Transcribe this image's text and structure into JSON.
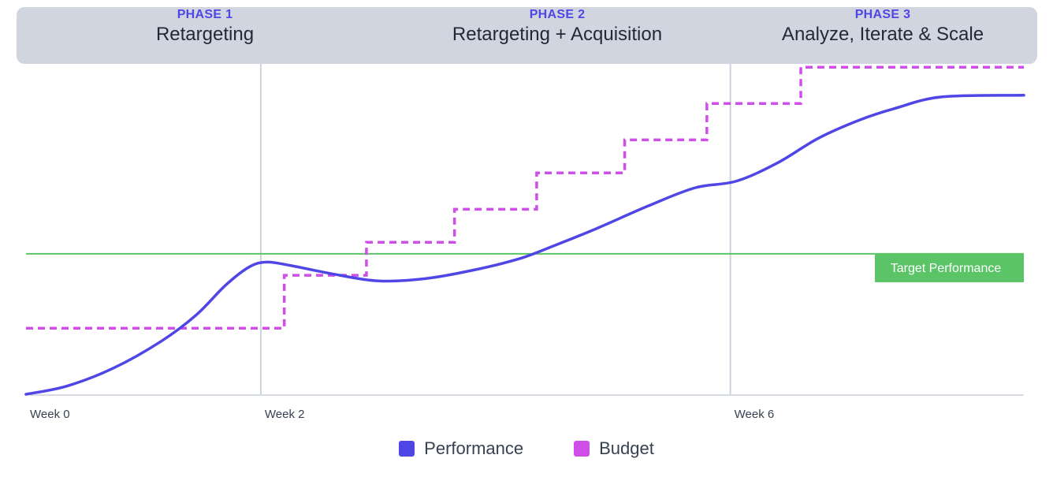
{
  "phases": [
    {
      "tag": "PHASE 1",
      "name": "Retargeting"
    },
    {
      "tag": "PHASE 2",
      "name": "Retargeting + Acquisition"
    },
    {
      "tag": "PHASE 3",
      "name": "Analyze, Iterate & Scale"
    }
  ],
  "chart_data": {
    "type": "line",
    "x_ticks": [
      {
        "label": "Week 0",
        "x": 0
      },
      {
        "label": "Week 2",
        "x": 2
      },
      {
        "label": "Week 6",
        "x": 6
      }
    ],
    "x_range": [
      0,
      8.5
    ],
    "y_range": [
      0,
      100
    ],
    "grid": false,
    "target": {
      "label": "Target Performance",
      "value": 42.5
    },
    "series": [
      {
        "name": "Performance",
        "color": "#4f46e5",
        "style": "solid",
        "points": [
          [
            0,
            0
          ],
          [
            0.35,
            2.5
          ],
          [
            0.75,
            8
          ],
          [
            1.15,
            16
          ],
          [
            1.45,
            24
          ],
          [
            1.7,
            33
          ],
          [
            1.9,
            38.5
          ],
          [
            2.05,
            40
          ],
          [
            2.25,
            39
          ],
          [
            2.6,
            36.5
          ],
          [
            3.0,
            34.3
          ],
          [
            3.4,
            35
          ],
          [
            3.8,
            37.5
          ],
          [
            4.2,
            41
          ],
          [
            4.5,
            45
          ],
          [
            4.85,
            50
          ],
          [
            5.3,
            57
          ],
          [
            5.7,
            62.5
          ],
          [
            6.05,
            64.5
          ],
          [
            6.4,
            70
          ],
          [
            6.75,
            77.5
          ],
          [
            7.1,
            83
          ],
          [
            7.4,
            86.5
          ],
          [
            7.8,
            90
          ],
          [
            8.5,
            90.5
          ]
        ]
      },
      {
        "name": "Budget",
        "color": "#d04ee8",
        "style": "dashed-step",
        "steps": [
          {
            "from": 0,
            "to": 2.2,
            "value": 20
          },
          {
            "from": 2.2,
            "to": 2.9,
            "value": 36
          },
          {
            "from": 2.9,
            "to": 3.65,
            "value": 46
          },
          {
            "from": 3.65,
            "to": 4.35,
            "value": 56
          },
          {
            "from": 4.35,
            "to": 5.1,
            "value": 67
          },
          {
            "from": 5.1,
            "to": 5.8,
            "value": 77
          },
          {
            "from": 5.8,
            "to": 6.6,
            "value": 88
          },
          {
            "from": 6.6,
            "to": 8.5,
            "value": 99
          }
        ]
      }
    ],
    "legend": {
      "position": "bottom-center"
    }
  }
}
